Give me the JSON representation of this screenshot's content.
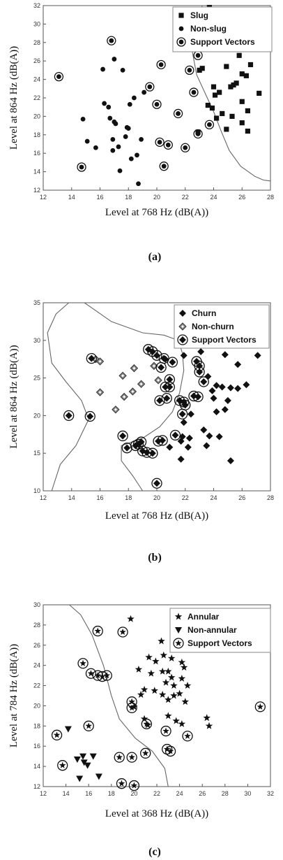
{
  "chart_data": [
    {
      "type": "scatter",
      "panel_label": "(a)",
      "xlabel": "Level at 768 Hz (dB(A))",
      "ylabel": "Level at 864 Hz (dB(A))",
      "xlim": [
        12,
        28
      ],
      "ylim": [
        12,
        32
      ],
      "xticks": [
        "12",
        "14",
        "16",
        "18",
        "20",
        "22",
        "24",
        "26",
        "28"
      ],
      "yticks": [
        "12",
        "14",
        "16",
        "18",
        "20",
        "22",
        "24",
        "26",
        "28",
        "30",
        "32"
      ],
      "legend_position": "top-right",
      "series": [
        {
          "name": "Slug",
          "marker": "square",
          "points": [
            [
              23.6,
              21.2
            ],
            [
              24.0,
              23.2
            ],
            [
              24.4,
              22.6
            ],
            [
              24.9,
              25.4
            ],
            [
              25.2,
              23.2
            ],
            [
              25.4,
              23.4
            ],
            [
              25.6,
              23.6
            ],
            [
              25.8,
              26.6
            ],
            [
              26.0,
              24.6
            ],
            [
              26.3,
              24.4
            ],
            [
              26.6,
              25.6
            ],
            [
              24.1,
              22.3
            ],
            [
              24.6,
              20.3
            ],
            [
              25.3,
              20.0
            ],
            [
              26.4,
              20.6
            ],
            [
              27.2,
              22.5
            ],
            [
              24.9,
              18.6
            ],
            [
              26.0,
              19.3
            ],
            [
              26.4,
              18.4
            ],
            [
              26.0,
              21.6
            ],
            [
              23.9,
              20.9
            ],
            [
              23.0,
              25.0
            ],
            [
              23.2,
              25.2
            ],
            [
              24.2,
              19.8
            ],
            [
              22.9,
              18.3
            ],
            [
              23.7,
              31.8
            ]
          ]
        },
        {
          "name": "Non-slug",
          "marker": "circle",
          "points": [
            [
              14.8,
              19.7
            ],
            [
              15.1,
              17.3
            ],
            [
              15.7,
              16.6
            ],
            [
              16.2,
              25.1
            ],
            [
              16.3,
              21.4
            ],
            [
              16.6,
              21.0
            ],
            [
              16.7,
              19.8
            ],
            [
              16.9,
              17.5
            ],
            [
              17.0,
              26.2
            ],
            [
              17.0,
              19.4
            ],
            [
              17.1,
              19.2
            ],
            [
              17.3,
              16.7
            ],
            [
              17.4,
              14.1
            ],
            [
              17.6,
              25.0
            ],
            [
              17.8,
              17.8
            ],
            [
              17.9,
              18.8
            ],
            [
              18.0,
              18.7
            ],
            [
              18.1,
              21.3
            ],
            [
              18.2,
              15.4
            ],
            [
              18.4,
              22.0
            ],
            [
              18.6,
              15.8
            ],
            [
              18.7,
              12.7
            ],
            [
              18.9,
              17.5
            ],
            [
              19.1,
              22.6
            ],
            [
              16.9,
              16.3
            ]
          ]
        },
        {
          "name": "Support Vectors",
          "marker": "open-circle",
          "points": [
            [
              13.1,
              24.3
            ],
            [
              14.7,
              14.5
            ],
            [
              16.8,
              28.2
            ],
            [
              19.5,
              23.2
            ],
            [
              20.0,
              21.3
            ],
            [
              20.3,
              25.6
            ],
            [
              20.2,
              17.2
            ],
            [
              20.5,
              14.6
            ],
            [
              20.8,
              16.9
            ],
            [
              21.5,
              20.3
            ],
            [
              22.0,
              16.6
            ],
            [
              22.3,
              25.0
            ],
            [
              22.6,
              22.6
            ],
            [
              22.9,
              26.6
            ],
            [
              22.9,
              18.1
            ],
            [
              23.7,
              19.1
            ]
          ]
        }
      ],
      "boundary": [
        [
          23.2,
          32
        ],
        [
          22.5,
          29.5
        ],
        [
          22.5,
          27
        ],
        [
          22.8,
          24.5
        ],
        [
          23.4,
          22.5
        ],
        [
          24.0,
          20.5
        ],
        [
          24.5,
          18.5
        ],
        [
          25.1,
          16.3
        ],
        [
          25.9,
          14.6
        ],
        [
          26.9,
          13.5
        ],
        [
          27.5,
          13.1
        ],
        [
          28,
          13.0
        ]
      ]
    },
    {
      "type": "scatter",
      "panel_label": "(b)",
      "xlabel": "Level at 768 Hz (dB(A))",
      "ylabel": "Level at 864 Hz (dB(A))",
      "xlim": [
        12,
        28
      ],
      "ylim": [
        10,
        35
      ],
      "xticks": [
        "12",
        "14",
        "16",
        "18",
        "20",
        "22",
        "24",
        "26",
        "28"
      ],
      "yticks": [
        "10",
        "15",
        "20",
        "25",
        "30",
        "35"
      ],
      "legend_position": "top-right",
      "series": [
        {
          "name": "Churn",
          "marker": "diamond",
          "points": [
            [
              20.6,
              27.5
            ],
            [
              21.9,
              28.0
            ],
            [
              23.1,
              28.5
            ],
            [
              24.8,
              28.1
            ],
            [
              25.7,
              26.8
            ],
            [
              27.1,
              28.0
            ],
            [
              23.6,
              25.2
            ],
            [
              24.2,
              24.0
            ],
            [
              24.6,
              23.8
            ],
            [
              25.2,
              23.7
            ],
            [
              25.7,
              23.6
            ],
            [
              26.3,
              24.1
            ],
            [
              23.9,
              23.3
            ],
            [
              24.0,
              22.3
            ],
            [
              25.0,
              22.0
            ],
            [
              24.2,
              20.5
            ],
            [
              24.8,
              20.8
            ],
            [
              21.9,
              19.1
            ],
            [
              22.4,
              20.2
            ],
            [
              21.8,
              17.2
            ],
            [
              22.3,
              17.0
            ],
            [
              23.3,
              18.1
            ],
            [
              23.7,
              17.3
            ],
            [
              24.4,
              17.2
            ],
            [
              21.7,
              16.6
            ],
            [
              22.2,
              15.8
            ],
            [
              23.5,
              16.0
            ],
            [
              21.7,
              14.2
            ],
            [
              25.2,
              14.0
            ],
            [
              20.9,
              15.8
            ]
          ]
        },
        {
          "name": "Non-churn",
          "marker": "diamond-hatched",
          "points": [
            [
              15.7,
              27.5
            ],
            [
              16.0,
              27.2
            ],
            [
              16.0,
              23.1
            ],
            [
              17.1,
              20.8
            ],
            [
              17.6,
              25.3
            ],
            [
              17.7,
              22.5
            ],
            [
              18.3,
              23.2
            ],
            [
              18.4,
              26.3
            ],
            [
              18.9,
              24.2
            ],
            [
              19.8,
              26.6
            ],
            [
              20.1,
              24.7
            ]
          ]
        },
        {
          "name": "Support Vectors",
          "marker": "open-circle-diamond",
          "points": [
            [
              13.8,
              20.0
            ],
            [
              15.3,
              19.9
            ],
            [
              15.4,
              27.6
            ],
            [
              17.6,
              17.3
            ],
            [
              17.9,
              15.7
            ],
            [
              18.5,
              16.0
            ],
            [
              18.7,
              16.2
            ],
            [
              18.9,
              16.5
            ],
            [
              19.0,
              15.3
            ],
            [
              19.3,
              15.1
            ],
            [
              19.4,
              28.8
            ],
            [
              19.7,
              28.5
            ],
            [
              19.7,
              15.0
            ],
            [
              20.0,
              28.0
            ],
            [
              20.1,
              16.6
            ],
            [
              20.4,
              16.7
            ],
            [
              20.3,
              26.4
            ],
            [
              20.5,
              27.6
            ],
            [
              20.6,
              23.8
            ],
            [
              20.7,
              22.3
            ],
            [
              20.9,
              24.8
            ],
            [
              20.9,
              23.8
            ],
            [
              21.1,
              27.1
            ],
            [
              21.3,
              17.4
            ],
            [
              21.6,
              22.0
            ],
            [
              21.8,
              20.2
            ],
            [
              21.9,
              21.8
            ],
            [
              22.0,
              21.4
            ],
            [
              22.6,
              22.6
            ],
            [
              22.8,
              27.2
            ],
            [
              22.9,
              22.5
            ],
            [
              23.0,
              26.6
            ],
            [
              23.0,
              25.8
            ],
            [
              23.3,
              24.5
            ],
            [
              20.2,
              22.0
            ],
            [
              20.0,
              11.0
            ]
          ]
        }
      ],
      "boundary": [
        [
          13.8,
          35
        ],
        [
          12.9,
          33.5
        ],
        [
          12.3,
          31
        ],
        [
          12.6,
          27
        ],
        [
          13.6,
          24.5
        ],
        [
          14.7,
          22
        ],
        [
          15.2,
          19.5
        ],
        [
          14.3,
          16
        ],
        [
          13.2,
          13.5
        ],
        [
          12.6,
          10
        ]
      ],
      "boundary2": [
        [
          14.9,
          35
        ],
        [
          16.8,
          32.5
        ],
        [
          19.0,
          31
        ],
        [
          20.5,
          30.7
        ],
        [
          21.5,
          30.0
        ],
        [
          21.8,
          28.3
        ],
        [
          21.9,
          26
        ],
        [
          21.6,
          23
        ],
        [
          21.1,
          20.5
        ],
        [
          20.2,
          18.5
        ],
        [
          19.0,
          17
        ],
        [
          17.5,
          16
        ],
        [
          17.5,
          14
        ],
        [
          18.3,
          12
        ],
        [
          19.0,
          10
        ]
      ]
    },
    {
      "type": "scatter",
      "panel_label": "(c)",
      "xlabel": "Level at 368 Hz (dB(A))",
      "ylabel": "Level at 784 Hz (dB(A))",
      "xlim": [
        12,
        32
      ],
      "ylim": [
        12,
        30
      ],
      "xticks": [
        "12",
        "14",
        "16",
        "18",
        "20",
        "22",
        "24",
        "26",
        "28",
        "30",
        "32"
      ],
      "yticks": [
        "12",
        "14",
        "16",
        "18",
        "20",
        "22",
        "24",
        "26",
        "28",
        "30"
      ],
      "legend_position": "top-right",
      "series": [
        {
          "name": "Annular",
          "marker": "star",
          "points": [
            [
              19.7,
              28.6
            ],
            [
              22.4,
              26.4
            ],
            [
              21.3,
              24.8
            ],
            [
              21.9,
              24.4
            ],
            [
              22.6,
              25.0
            ],
            [
              23.3,
              24.7
            ],
            [
              24.2,
              24.3
            ],
            [
              24.4,
              23.8
            ],
            [
              20.4,
              23.6
            ],
            [
              21.5,
              23.2
            ],
            [
              22.5,
              23.4
            ],
            [
              23.3,
              22.8
            ],
            [
              22.8,
              22.3
            ],
            [
              23.5,
              22.0
            ],
            [
              24.2,
              22.7
            ],
            [
              24.7,
              22.0
            ],
            [
              20.9,
              21.6
            ],
            [
              21.8,
              21.5
            ],
            [
              22.5,
              21.1
            ],
            [
              23.0,
              20.6
            ],
            [
              23.5,
              21.0
            ],
            [
              24.0,
              21.2
            ],
            [
              24.5,
              20.4
            ],
            [
              20.6,
              21.1
            ],
            [
              20.9,
              18.7
            ],
            [
              21.2,
              18.1
            ],
            [
              23.0,
              19.0
            ],
            [
              23.7,
              18.5
            ],
            [
              24.2,
              18.2
            ],
            [
              26.4,
              18.8
            ],
            [
              26.6,
              18.0
            ],
            [
              20.0,
              19.9
            ],
            [
              23.0,
              23.4
            ]
          ]
        },
        {
          "name": "Non-annular",
          "marker": "triangle-down",
          "points": [
            [
              14.2,
              17.7
            ],
            [
              15.0,
              14.7
            ],
            [
              15.2,
              12.8
            ],
            [
              15.6,
              14.4
            ],
            [
              15.5,
              15.0
            ],
            [
              15.9,
              14.1
            ],
            [
              16.4,
              15.0
            ],
            [
              16.9,
              13.0
            ]
          ]
        },
        {
          "name": "Support Vectors",
          "marker": "open-circle-star",
          "points": [
            [
              13.2,
              17.1
            ],
            [
              13.7,
              14.1
            ],
            [
              15.5,
              24.2
            ],
            [
              16.0,
              18.0
            ],
            [
              16.2,
              23.2
            ],
            [
              16.8,
              27.4
            ],
            [
              16.8,
              23.0
            ],
            [
              17.2,
              22.9
            ],
            [
              17.6,
              23.0
            ],
            [
              18.7,
              14.9
            ],
            [
              18.9,
              12.3
            ],
            [
              19.0,
              27.3
            ],
            [
              19.8,
              20.4
            ],
            [
              19.8,
              19.8
            ],
            [
              19.8,
              14.9
            ],
            [
              20.0,
              12.1
            ],
            [
              21.0,
              15.3
            ],
            [
              21.1,
              18.2
            ],
            [
              22.8,
              17.5
            ],
            [
              22.9,
              15.7
            ],
            [
              23.2,
              15.5
            ],
            [
              24.7,
              17.0
            ],
            [
              31.1,
              19.9
            ]
          ]
        }
      ],
      "boundary": [
        [
          14.3,
          30
        ],
        [
          15.3,
          29
        ],
        [
          16.3,
          27
        ],
        [
          17.3,
          24
        ],
        [
          18.0,
          21
        ],
        [
          18.7,
          18.7
        ],
        [
          20.1,
          16.8
        ],
        [
          21.6,
          15.5
        ],
        [
          22.7,
          13.8
        ],
        [
          23.0,
          12
        ]
      ]
    }
  ]
}
